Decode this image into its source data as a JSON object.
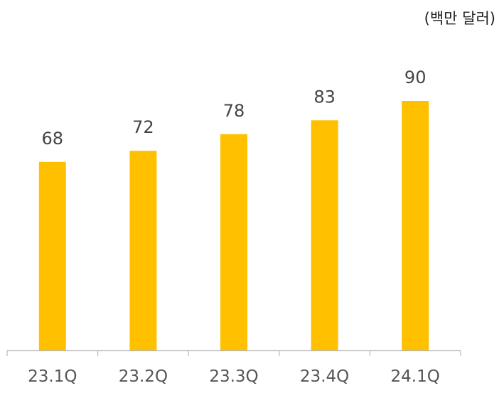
{
  "chart_data": {
    "type": "bar",
    "unit_label": "(백만 달러)",
    "categories": [
      "23.1Q",
      "23.2Q",
      "23.3Q",
      "23.4Q",
      "24.1Q"
    ],
    "values": [
      68,
      72,
      78,
      83,
      90
    ],
    "data_labels": [
      "68",
      "72",
      "78",
      "83",
      "90"
    ],
    "bar_color": "#FFC000",
    "axis_color": "#B8B8B8",
    "title": "",
    "xlabel": "",
    "ylabel": "",
    "y_axis_visible": false,
    "grid": false,
    "legend": "none"
  }
}
